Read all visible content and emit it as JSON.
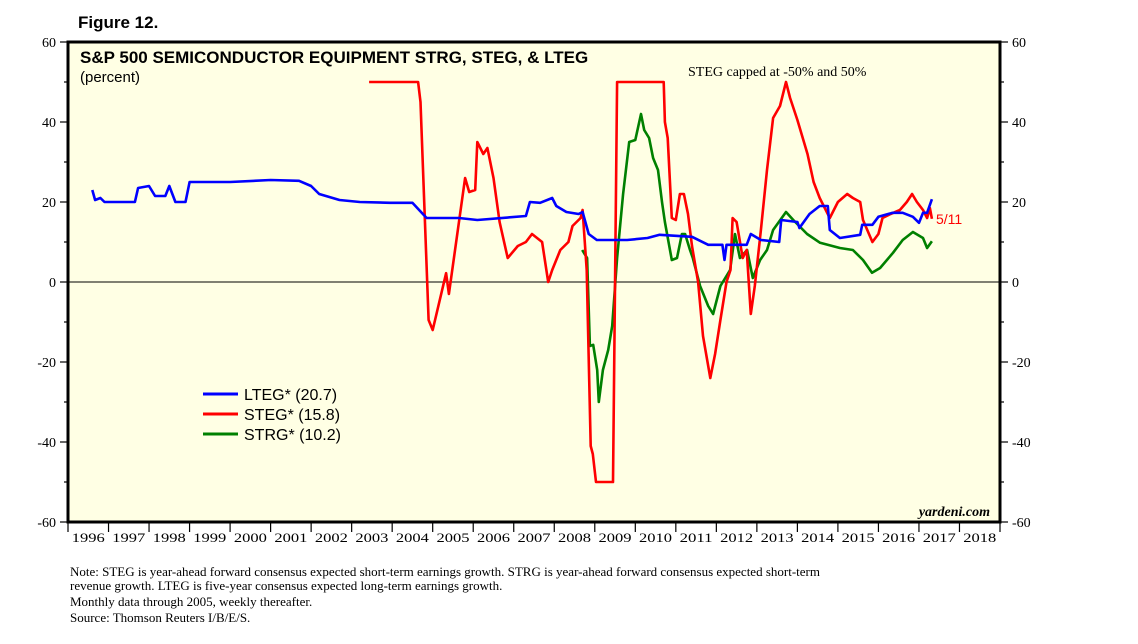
{
  "figure_label": "Figure 12.",
  "chart_data": {
    "type": "line",
    "title": "S&P 500 SEMICONDUCTOR EQUIPMENT STRG, STEG, & LTEG",
    "subtitle": "(percent)",
    "annotation": "STEG capped at -50% and 50%",
    "end_label": "5/11",
    "watermark": "yardeni.com",
    "xlim": [
      1996,
      2019
    ],
    "ylim": [
      -60,
      60
    ],
    "y_ticks": [
      -60,
      -40,
      -20,
      0,
      20,
      40,
      60
    ],
    "x_tick_labels": [
      "1996",
      "1997",
      "1998",
      "1999",
      "2000",
      "2001",
      "2002",
      "2003",
      "2004",
      "2005",
      "2006",
      "2007",
      "2008",
      "2009",
      "2010",
      "2011",
      "2012",
      "2013",
      "2014",
      "2015",
      "2016",
      "2017",
      "2018"
    ],
    "grid": false,
    "legend_position": "lower-left",
    "series": [
      {
        "name": "LTEG* (20.7)",
        "color": "#0000ff",
        "x": [
          1996.6,
          1996.67,
          1996.8,
          1996.9,
          1997.65,
          1997.73,
          1998.0,
          1998.15,
          1998.4,
          1998.5,
          1998.65,
          1998.9,
          1999.0,
          2000.0,
          2001.0,
          2001.7,
          2002.0,
          2002.2,
          2002.7,
          2003.2,
          2003.95,
          2004.5,
          2004.85,
          2005.65,
          2006.1,
          2007.3,
          2007.4,
          2007.65,
          2007.95,
          2008.05,
          2008.3,
          2008.6,
          2008.7,
          2008.85,
          2009.05,
          2009.8,
          2010.3,
          2010.6,
          2011.4,
          2011.8,
          2012.15,
          2012.2,
          2012.25,
          2012.75,
          2012.85,
          2013.1,
          2013.55,
          2013.6,
          2014.0,
          2014.05,
          2014.3,
          2014.55,
          2014.75,
          2014.8,
          2015.05,
          2015.55,
          2015.6,
          2015.85,
          2016.0,
          2016.35,
          2016.6,
          2016.85,
          2017.0,
          2017.1,
          2017.2,
          2017.32
        ],
        "y": [
          23,
          20.5,
          21,
          20,
          20,
          23.5,
          24,
          21.5,
          21.5,
          24,
          20,
          20,
          25,
          25,
          25.5,
          25.3,
          24,
          22,
          20.5,
          20,
          19.8,
          19.8,
          16,
          16,
          15.5,
          16.5,
          20,
          19.8,
          21,
          19,
          17.5,
          17,
          17.5,
          12,
          10.5,
          10.5,
          11,
          11.8,
          11.3,
          9.3,
          9.3,
          5.5,
          9.3,
          9.3,
          12,
          10.5,
          10,
          15.5,
          15,
          13.5,
          17,
          19,
          19,
          13,
          11,
          11.8,
          14.3,
          14.3,
          16.3,
          17.3,
          17.3,
          16.3,
          14.8,
          17.3,
          17.3,
          20.7
        ]
      },
      {
        "name": "STEG* (15.8)",
        "color": "#ff0000",
        "x": [
          2003.43,
          2004.64,
          2004.7,
          2004.9,
          2005.0,
          2005.33,
          2005.4,
          2005.8,
          2005.9,
          2006.05,
          2006.1,
          2006.25,
          2006.35,
          2006.5,
          2006.65,
          2006.85,
          2007.1,
          2007.3,
          2007.45,
          2007.7,
          2007.85,
          2007.95,
          2008.15,
          2008.35,
          2008.45,
          2008.65,
          2008.7,
          2008.8,
          2008.9,
          2008.95,
          2009.03,
          2009.45,
          2009.55,
          2010.7,
          2010.73,
          2010.8,
          2010.9,
          2011.0,
          2011.1,
          2011.2,
          2011.3,
          2011.4,
          2011.55,
          2011.67,
          2011.85,
          2011.97,
          2012.1,
          2012.25,
          2012.35,
          2012.4,
          2012.5,
          2012.65,
          2012.75,
          2012.85,
          2012.95,
          2013.1,
          2013.25,
          2013.4,
          2013.57,
          2013.72,
          2013.82,
          2014.0,
          2014.25,
          2014.4,
          2014.55,
          2014.8,
          2015.0,
          2015.23,
          2015.37,
          2015.55,
          2015.62,
          2015.85,
          2016.0,
          2016.1,
          2016.3,
          2016.53,
          2016.7,
          2016.83,
          2016.95,
          2017.1,
          2017.2,
          2017.27,
          2017.32
        ],
        "y": [
          50,
          50,
          45,
          -9.5,
          -12,
          2.2,
          -3,
          26,
          22.5,
          23,
          35,
          32,
          33.5,
          26,
          15,
          6,
          9,
          10,
          12,
          10,
          0,
          3,
          8,
          10,
          14,
          16,
          18,
          3,
          -41,
          -43,
          -50,
          -50,
          50,
          50,
          40,
          36,
          16,
          15.5,
          22,
          22,
          17,
          9,
          0,
          -13.5,
          -24,
          -18,
          -9.5,
          0,
          3,
          16,
          15,
          6,
          8,
          -8,
          -1,
          13,
          28,
          41,
          44,
          50,
          46,
          40.5,
          32,
          25,
          21,
          16,
          20,
          22,
          21,
          20,
          15.5,
          10,
          12,
          16,
          17,
          18,
          20,
          22,
          20,
          18,
          16,
          18.5,
          15.8
        ]
      },
      {
        "name": "STRG* (10.2)",
        "color": "#008000",
        "x": [
          2008.69,
          2008.81,
          2008.88,
          2008.96,
          2009.06,
          2009.1,
          2009.2,
          2009.33,
          2009.43,
          2009.55,
          2009.7,
          2009.85,
          2010.0,
          2010.14,
          2010.22,
          2010.34,
          2010.44,
          2010.56,
          2010.66,
          2010.73,
          2010.9,
          2011.03,
          2011.15,
          2011.23,
          2011.35,
          2011.42,
          2011.6,
          2011.8,
          2011.92,
          2012.1,
          2012.34,
          2012.46,
          2012.58,
          2012.76,
          2012.9,
          2013.08,
          2013.25,
          2013.4,
          2013.72,
          2013.9,
          2014.24,
          2014.56,
          2015.05,
          2015.37,
          2015.62,
          2015.84,
          2016.04,
          2016.36,
          2016.6,
          2016.85,
          2017.1,
          2017.2,
          2017.32
        ],
        "y": [
          8,
          6,
          -16,
          -15.7,
          -22,
          -30,
          -22,
          -17,
          -11,
          6,
          22,
          35,
          35.5,
          42,
          38,
          36,
          31,
          28,
          20,
          15,
          5.5,
          6,
          12,
          12,
          8,
          6,
          -1,
          -6,
          -8,
          -1,
          3,
          12,
          6,
          8,
          1,
          5.5,
          8,
          13,
          17.5,
          15.5,
          12,
          9.8,
          8.5,
          8,
          5.5,
          2.3,
          3.5,
          7.3,
          10.5,
          12.5,
          11,
          8.5,
          10.2
        ]
      }
    ]
  }
}
